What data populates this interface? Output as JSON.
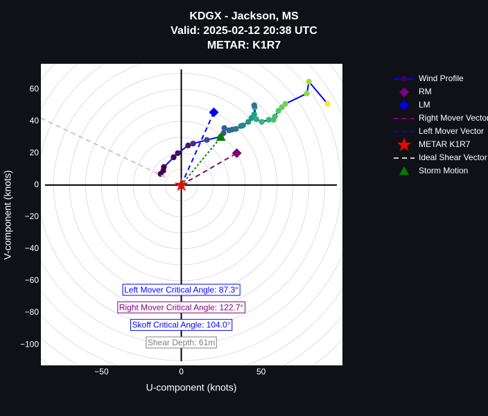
{
  "chart_data": {
    "type": "hodograph",
    "title": [
      "KDGX - Jackson, MS",
      "Valid: 2025-02-12 20:38 UTC",
      "METAR: K1R7"
    ],
    "x_label": "U-component (knots)",
    "y_label": "V-component (knots)",
    "xlim": [
      -88,
      101
    ],
    "ylim": [
      -113,
      76
    ],
    "xticks": [
      {
        "value": -50,
        "label": "−50"
      },
      0,
      50
    ],
    "yticks": [
      {
        "value": -100,
        "label": "−100"
      },
      {
        "value": -80,
        "label": "−80"
      },
      {
        "value": -60,
        "label": "−60"
      },
      {
        "value": -40,
        "label": "−40"
      },
      {
        "value": -20,
        "label": "−20"
      },
      0,
      20,
      40,
      60
    ],
    "rings": [
      10,
      20,
      30,
      40,
      50,
      60,
      70,
      80,
      90,
      100,
      110,
      120,
      130,
      140,
      150
    ],
    "background": "#ffffff",
    "ring_color": "#dddddd",
    "axis_color": "#000000",
    "series": [
      {
        "name": "Wind Profile",
        "color": "#0000ff",
        "marker": "circle",
        "x": [
          -13,
          -11.3,
          -10.9,
          -4.8,
          -2.2,
          4.3,
          7.4,
          16,
          24.8,
          26.5,
          27,
          30,
          32,
          34.3,
          37.4,
          38.7,
          42,
          44,
          45.7,
          46,
          45.7,
          47,
          50.4,
          54.8,
          57.8,
          58.7,
          60.9,
          63,
          65.2,
          78.7,
          80,
          91.7
        ],
        "y": [
          7,
          9,
          11.3,
          17.4,
          20,
          24.8,
          26,
          28.3,
          30.4,
          32.6,
          35.7,
          34.3,
          34.8,
          35.2,
          37,
          37.4,
          39.6,
          42,
          44.3,
          48.7,
          50,
          41.3,
          39.6,
          40.9,
          40.9,
          43,
          46.5,
          48.7,
          50.9,
          57.4,
          64.8,
          50.9
        ],
        "marker_colors": [
          "#440154",
          "#440154",
          "#440154",
          "#46085c",
          "#471063",
          "#48186a",
          "#472d7b",
          "#3e4989",
          "#3b528b",
          "#38598c",
          "#355f8d",
          "#31688e",
          "#2d708e",
          "#2a788e",
          "#27808e",
          "#23888e",
          "#21918c",
          "#1f988b",
          "#1fa088",
          "#22a884",
          "#2a788e",
          "#2ab07f",
          "#35b779",
          "#35b779",
          "#44bf70",
          "#44bf70",
          "#54c568",
          "#6ccd5a",
          "#7ad151",
          "#95d840",
          "#a5db36",
          "#fde725"
        ]
      },
      {
        "name": "RM",
        "color": "#800080",
        "marker": "diamond",
        "x": [
          34.8
        ],
        "y": [
          20
        ]
      },
      {
        "name": "LM",
        "color": "#0000ff",
        "marker": "diamond",
        "x": [
          20.4
        ],
        "y": [
          45.6
        ]
      },
      {
        "name": "Right Mover Vector",
        "color": "#800080",
        "dash": "dash",
        "x": [
          0,
          34.8
        ],
        "y": [
          0,
          20
        ]
      },
      {
        "name": "Left Mover Vector",
        "color": "#0000ff",
        "dash": "dash",
        "x": [
          0,
          20.4
        ],
        "y": [
          0,
          45.6
        ]
      },
      {
        "name": "METAR K1R7",
        "color": "#ff0000",
        "marker": "star",
        "x": [
          0
        ],
        "y": [
          0
        ]
      },
      {
        "name": "Ideal Shear Vector",
        "color": "#c8c8c8",
        "dash": "dash",
        "x": [
          -88,
          -8.7
        ],
        "y": [
          42,
          4.3
        ]
      },
      {
        "name": "Storm Motion",
        "color": "#008000",
        "marker": "triangle",
        "dash": "dot",
        "markers": "last",
        "x": [
          0,
          24.8
        ],
        "y": [
          0,
          30
        ]
      }
    ],
    "annotations": [
      {
        "text": "Left Mover Critical Angle: 87.3°",
        "x": 0,
        "y": -66,
        "color": "#0000ff"
      },
      {
        "text": "Right Mover Critical Angle: 122.7°",
        "x": 0,
        "y": -77,
        "color": "#800080"
      },
      {
        "text": "Skoff Critical Angle: 104.0°",
        "x": 0,
        "y": -88,
        "color": "#0000ff"
      },
      {
        "text": "Shear Depth: 61m",
        "x": 0,
        "y": -99,
        "color": "#808080"
      }
    ]
  }
}
